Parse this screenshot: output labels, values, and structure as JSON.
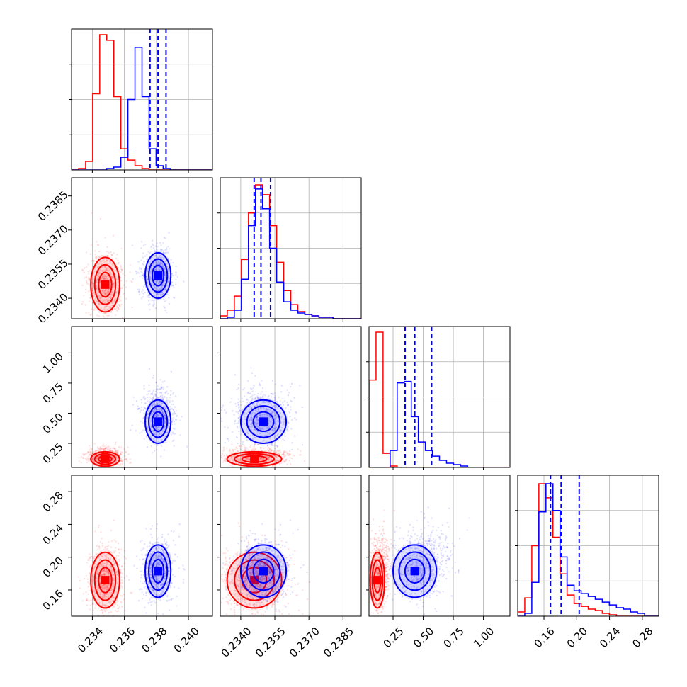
{
  "chart_data": {
    "type": "corner",
    "grid": true,
    "parameters": [
      {
        "ticks": [
          0.234,
          0.236,
          0.238,
          0.24
        ],
        "tick_labels": [
          "0.234",
          "0.236",
          "0.238",
          "0.240"
        ],
        "range": [
          0.2327,
          0.2415
        ]
      },
      {
        "ticks": [
          0.234,
          0.2355,
          0.237,
          0.2385
        ],
        "tick_labels": [
          "0.2340",
          "0.2355",
          "0.2370",
          "0.2385"
        ],
        "range": [
          0.2331,
          0.2393
        ]
      },
      {
        "ticks": [
          0.25,
          0.5,
          0.75,
          1.0
        ],
        "tick_labels": [
          "0.25",
          "0.50",
          "0.75",
          "1.00"
        ],
        "range": [
          0.05,
          1.22
        ]
      },
      {
        "ticks": [
          0.16,
          0.2,
          0.24,
          0.28
        ],
        "tick_labels": [
          "0.16",
          "0.20",
          "0.24",
          "0.28"
        ],
        "range": [
          0.128,
          0.3
        ]
      }
    ],
    "series": [
      {
        "color": "#ff0000",
        "quantile_lines": null,
        "means": [
          0.2348,
          0.2346,
          0.12,
          0.172
        ],
        "sigmas": [
          0.00045,
          0.0006,
          0.03,
          0.017
        ],
        "histograms": [
          [
            0.0,
            0.01,
            0.06,
            0.54,
            0.96,
            0.92,
            0.52,
            0.15,
            0.07,
            0.03,
            0.01,
            0.0,
            0.0,
            0.0,
            0.0,
            0.0,
            0.0,
            0.0,
            0.0,
            0.0
          ],
          [
            0.02,
            0.06,
            0.16,
            0.42,
            0.75,
            0.95,
            0.88,
            0.66,
            0.4,
            0.2,
            0.1,
            0.05,
            0.03,
            0.02,
            0.01,
            0.01,
            0.0,
            0.0,
            0.0,
            0.0
          ],
          [
            0.62,
            0.96,
            0.1,
            0.01,
            0.0,
            0.0,
            0.0,
            0.0,
            0.0,
            0.0,
            0.0,
            0.0,
            0.0,
            0.0,
            0.0,
            0.0,
            0.0,
            0.0,
            0.0,
            0.0
          ],
          [
            0.03,
            0.13,
            0.5,
            0.94,
            0.84,
            0.56,
            0.3,
            0.15,
            0.09,
            0.07,
            0.05,
            0.04,
            0.02,
            0.01,
            0.0,
            0.0,
            0.0,
            0.0,
            0.0,
            0.0
          ]
        ]
      },
      {
        "color": "#0000ff",
        "quantile_lines": [
          [
            0.2376,
            0.2381,
            0.2386
          ],
          [
            0.23459,
            0.23489,
            0.23531
          ],
          [
            0.35,
            0.43,
            0.57
          ],
          [
            0.168,
            0.181,
            0.203
          ]
        ],
        "means": [
          0.2381,
          0.235,
          0.43,
          0.183
        ],
        "sigmas": [
          0.0004,
          0.0005,
          0.09,
          0.016
        ],
        "histograms": [
          [
            0.0,
            0.0,
            0.0,
            0.0,
            0.0,
            0.01,
            0.02,
            0.09,
            0.5,
            0.87,
            0.52,
            0.15,
            0.03,
            0.01,
            0.0,
            0.0,
            0.0,
            0.0,
            0.0,
            0.0
          ],
          [
            0.0,
            0.01,
            0.06,
            0.28,
            0.66,
            0.92,
            0.78,
            0.5,
            0.26,
            0.12,
            0.06,
            0.04,
            0.03,
            0.02,
            0.01,
            0.01,
            0.0,
            0.0,
            0.0,
            0.0
          ],
          [
            0.0,
            0.0,
            0.0,
            0.12,
            0.6,
            0.61,
            0.36,
            0.18,
            0.12,
            0.08,
            0.05,
            0.03,
            0.02,
            0.01,
            0.0,
            0.0,
            0.0,
            0.0,
            0.0,
            0.0
          ],
          [
            0.0,
            0.02,
            0.24,
            0.74,
            0.94,
            0.75,
            0.42,
            0.22,
            0.18,
            0.16,
            0.14,
            0.12,
            0.1,
            0.08,
            0.06,
            0.05,
            0.03,
            0.02,
            0.0,
            0.0
          ]
        ]
      }
    ]
  }
}
